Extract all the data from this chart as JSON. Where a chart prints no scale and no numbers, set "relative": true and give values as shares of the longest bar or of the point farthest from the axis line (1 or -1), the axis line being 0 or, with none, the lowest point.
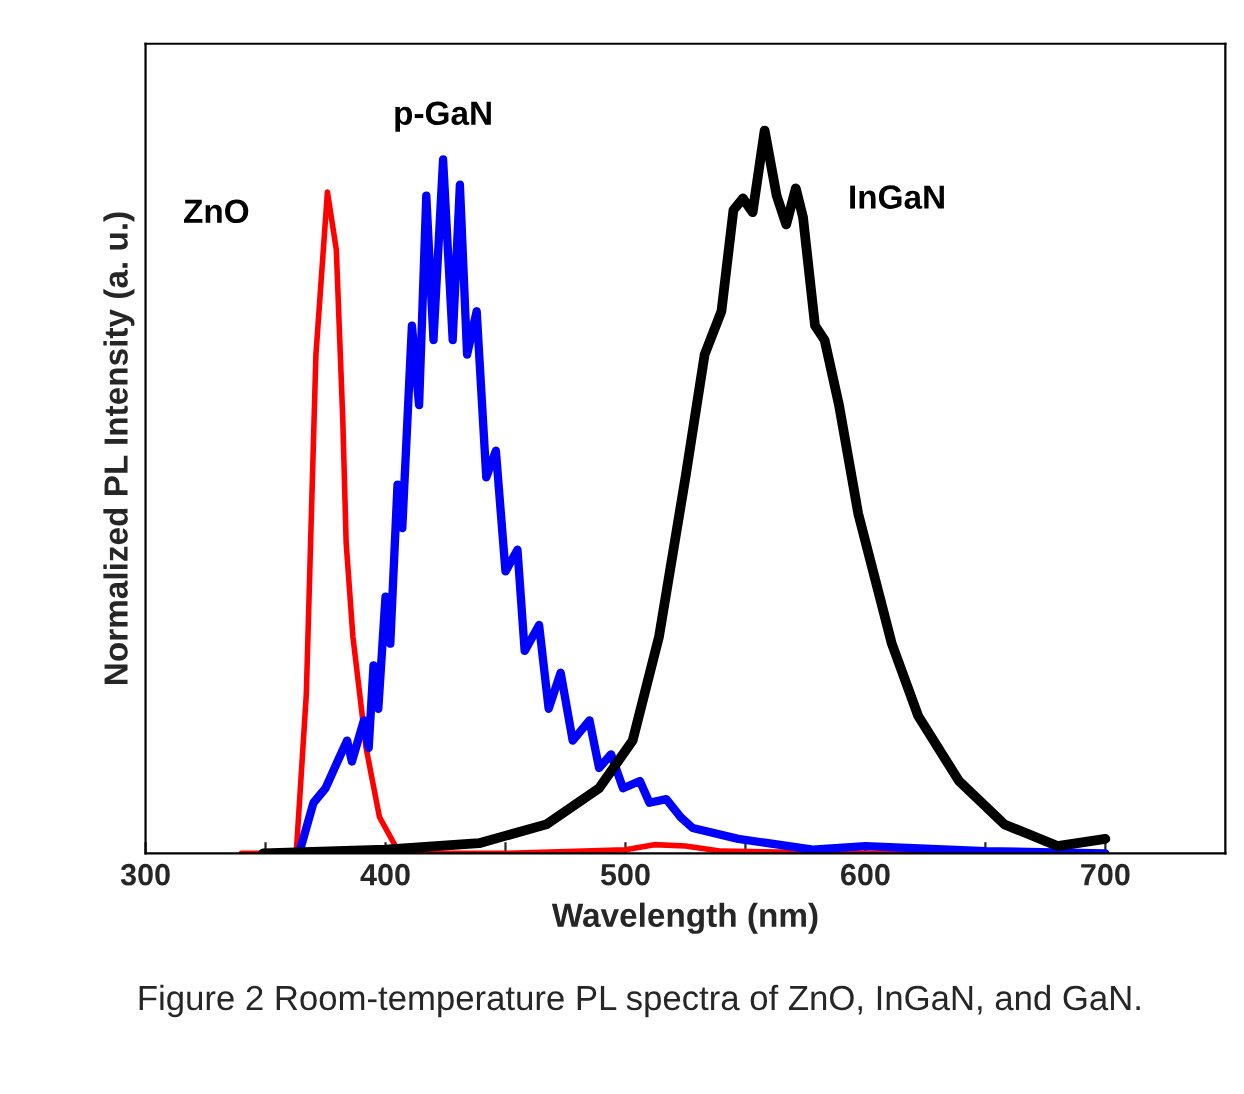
{
  "chart_data": {
    "type": "line",
    "xlabel": "Wavelength (nm)",
    "ylabel": "Normalized PL Intensity (a. u.)",
    "relative": true,
    "xlim": [
      300,
      750
    ],
    "xticks": [
      300,
      {
        "value": 350,
        "label": null
      },
      400,
      {
        "value": 450,
        "label": null
      },
      500,
      {
        "value": 550,
        "label": null
      },
      600,
      {
        "value": 650,
        "label": null
      },
      700
    ],
    "grid": false,
    "marker": "none",
    "line_style": "solid",
    "annotations": [
      "Figure 2 Room-temperature PL spectra of ZnO, InGaN, and GaN."
    ],
    "series": [
      {
        "name": "ZnO",
        "color": "#ff0000",
        "x": [
          340,
          362.8,
          367,
          371,
          375.8,
          379.5,
          382.2,
          383.6,
          386.4,
          391.9,
          397.5,
          405.8,
          450,
          500,
          512,
          525,
          540,
          600,
          700
        ],
        "values": [
          0,
          0,
          0.22,
          0.69,
          0.915,
          0.835,
          0.6,
          0.43,
          0.3,
          0.146,
          0.05,
          0,
          0,
          0.005,
          0.012,
          0.01,
          0.003,
          0,
          0
        ]
      },
      {
        "name": "p-GaN",
        "color": "#0000ff",
        "x": [
          362,
          364,
          370,
          375,
          380,
          384,
          386,
          391,
          393,
          395,
          397,
          400,
          402,
          405,
          407,
          411,
          414,
          417,
          420,
          424,
          428,
          431,
          434,
          438,
          442,
          446,
          450,
          455,
          458,
          464,
          468,
          473,
          478,
          485,
          489,
          494,
          499,
          506,
          510,
          517,
          523,
          528,
          547,
          578,
          600,
          650,
          700
        ],
        "values": [
          0,
          0,
          0.07,
          0.09,
          0.127,
          0.156,
          0.127,
          0.184,
          0.146,
          0.26,
          0.2,
          0.355,
          0.29,
          0.51,
          0.45,
          0.73,
          0.62,
          0.91,
          0.71,
          0.96,
          0.71,
          0.925,
          0.69,
          0.75,
          0.52,
          0.557,
          0.39,
          0.42,
          0.28,
          0.316,
          0.2,
          0.25,
          0.156,
          0.184,
          0.118,
          0.137,
          0.09,
          0.1,
          0.07,
          0.075,
          0.05,
          0.035,
          0.02,
          0.005,
          0.01,
          0.003,
          0
        ]
      },
      {
        "name": "InGaN",
        "color": "#000000",
        "x": [
          349,
          400,
          439,
          467,
          489,
          503,
          514,
          525,
          533,
          540,
          545,
          549,
          553,
          558,
          563,
          567,
          571,
          574,
          579,
          583,
          589,
          597,
          611,
          622,
          639,
          658,
          680,
          700
        ],
        "values": [
          0,
          0.005,
          0.014,
          0.04,
          0.09,
          0.156,
          0.3,
          0.52,
          0.69,
          0.75,
          0.89,
          0.906,
          0.887,
          1.0,
          0.91,
          0.87,
          0.92,
          0.88,
          0.73,
          0.71,
          0.62,
          0.47,
          0.29,
          0.19,
          0.1,
          0.04,
          0.01,
          0.02
        ]
      }
    ]
  }
}
